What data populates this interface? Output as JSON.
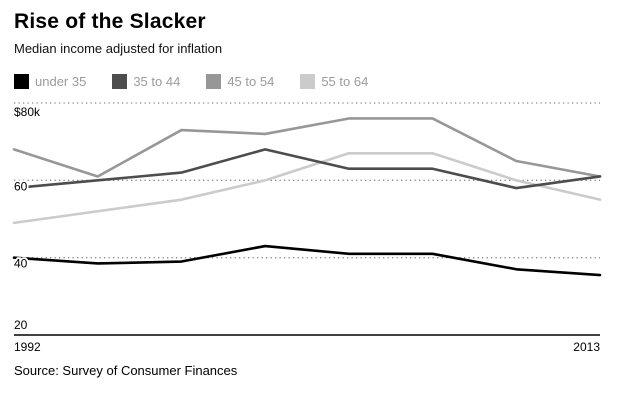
{
  "header": {
    "title": "Rise of the Slacker",
    "subtitle": "Median income adjusted for inflation"
  },
  "legend": [
    {
      "label": "under 35",
      "color": "#000000"
    },
    {
      "label": "35 to 44",
      "color": "#4d4d4d"
    },
    {
      "label": "45 to 54",
      "color": "#979797"
    },
    {
      "label": "55 to 64",
      "color": "#cbcbcb"
    }
  ],
  "chart_data": {
    "type": "line",
    "title": "Rise of the Slacker",
    "subtitle": "Median income adjusted for inflation",
    "x": [
      1992,
      1995,
      1998,
      2001,
      2004,
      2007,
      2010,
      2013
    ],
    "series": [
      {
        "name": "under 35",
        "color": "#000000",
        "values": [
          40,
          38.5,
          39,
          43,
          41,
          41,
          37,
          35.5
        ]
      },
      {
        "name": "35 to 44",
        "color": "#4d4d4d",
        "values": [
          58,
          60,
          62,
          68,
          63,
          63,
          58,
          61
        ]
      },
      {
        "name": "45 to 54",
        "color": "#979797",
        "values": [
          68,
          61,
          73,
          72,
          76,
          76,
          65,
          61
        ]
      },
      {
        "name": "55 to 64",
        "color": "#cbcbcb",
        "values": [
          49,
          52,
          55,
          60,
          67,
          67,
          60,
          55
        ]
      }
    ],
    "xlabel": "",
    "ylabel": "",
    "ylim": [
      20,
      80
    ],
    "yticks": [
      {
        "value": 80,
        "label": "$80k"
      },
      {
        "value": 60,
        "label": "60"
      },
      {
        "value": 40,
        "label": "40"
      },
      {
        "value": 20,
        "label": "20"
      }
    ],
    "xticks": [
      {
        "value": 1992,
        "label": "1992"
      },
      {
        "value": 2013,
        "label": "2013"
      }
    ],
    "grid": "horizontal-dotted",
    "legend_position": "top"
  },
  "footer": {
    "source": "Source: Survey of Consumer Finances"
  }
}
